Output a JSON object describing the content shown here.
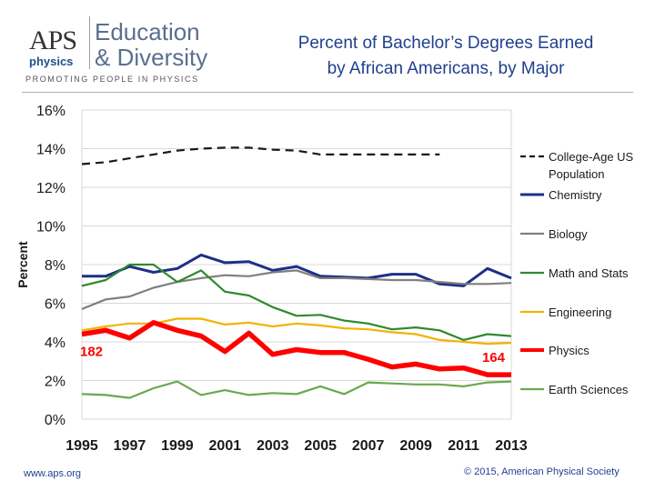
{
  "logo": {
    "aps": "APS",
    "physics": "physics",
    "line1": "Education",
    "line2": "& Diversity",
    "tagline": "PROMOTING PEOPLE IN PHYSICS"
  },
  "title_line1": "Percent of Bachelor’s Degrees Earned",
  "title_line2": "by African Americans, by Major",
  "footer_left": "www.aps.org",
  "footer_right": "© 2015, American Physical Society",
  "chart_data": {
    "type": "line",
    "ylabel": "Percent",
    "xlabel": "",
    "xlim": [
      1995,
      2013
    ],
    "ylim": [
      0,
      16
    ],
    "x_ticks": [
      1995,
      1997,
      1999,
      2001,
      2003,
      2005,
      2007,
      2009,
      2011,
      2013
    ],
    "y_ticks": [
      "0%",
      "2%",
      "4%",
      "6%",
      "8%",
      "10%",
      "12%",
      "14%",
      "16%"
    ],
    "grid": true,
    "legend_position": "right",
    "series": [
      {
        "name": "College-Age US Population",
        "color": "#1a1a1a",
        "dash": true,
        "width": 2.2,
        "x": [
          1995,
          1996,
          1997,
          1998,
          1999,
          2000,
          2001,
          2002,
          2003,
          2004,
          2005,
          2006,
          2007,
          2008,
          2009,
          2010
        ],
        "y": [
          13.2,
          13.3,
          13.5,
          13.7,
          13.9,
          14.0,
          14.05,
          14.05,
          13.95,
          13.9,
          13.7,
          13.7,
          13.7,
          13.7,
          13.7,
          13.7
        ]
      },
      {
        "name": "Chemistry",
        "color": "#1f2f86",
        "dash": false,
        "width": 3,
        "x": [
          1995,
          1996,
          1997,
          1998,
          1999,
          2000,
          2001,
          2002,
          2003,
          2004,
          2005,
          2006,
          2007,
          2008,
          2009,
          2010,
          2011,
          2012,
          2013
        ],
        "y": [
          7.4,
          7.4,
          7.9,
          7.6,
          7.8,
          8.5,
          8.1,
          8.15,
          7.7,
          7.9,
          7.4,
          7.35,
          7.3,
          7.5,
          7.5,
          7.0,
          6.9,
          7.8,
          7.3
        ]
      },
      {
        "name": "Biology",
        "color": "#7f7f7f",
        "dash": false,
        "width": 2.2,
        "x": [
          1995,
          1996,
          1997,
          1998,
          1999,
          2000,
          2001,
          2002,
          2003,
          2004,
          2005,
          2006,
          2007,
          2008,
          2009,
          2010,
          2011,
          2012,
          2013
        ],
        "y": [
          5.7,
          6.2,
          6.35,
          6.8,
          7.1,
          7.3,
          7.45,
          7.4,
          7.6,
          7.7,
          7.3,
          7.3,
          7.25,
          7.2,
          7.2,
          7.1,
          7.0,
          7.0,
          7.05
        ]
      },
      {
        "name": "Math and Stats",
        "color": "#2e8a2e",
        "dash": false,
        "width": 2.2,
        "x": [
          1995,
          1996,
          1997,
          1998,
          1999,
          2000,
          2001,
          2002,
          2003,
          2004,
          2005,
          2006,
          2007,
          2008,
          2009,
          2010,
          2011,
          2012,
          2013
        ],
        "y": [
          6.9,
          7.2,
          8.0,
          8.0,
          7.1,
          7.7,
          6.6,
          6.4,
          5.8,
          5.35,
          5.4,
          5.1,
          4.95,
          4.65,
          4.75,
          4.6,
          4.1,
          4.4,
          4.3
        ]
      },
      {
        "name": "Engineering",
        "color": "#f0b400",
        "dash": false,
        "width": 2.2,
        "x": [
          1995,
          1996,
          1997,
          1998,
          1999,
          2000,
          2001,
          2002,
          2003,
          2004,
          2005,
          2006,
          2007,
          2008,
          2009,
          2010,
          2011,
          2012,
          2013
        ],
        "y": [
          4.6,
          4.8,
          4.95,
          4.95,
          5.2,
          5.2,
          4.9,
          5.0,
          4.8,
          4.95,
          4.85,
          4.7,
          4.65,
          4.5,
          4.4,
          4.1,
          4.0,
          3.9,
          3.95
        ]
      },
      {
        "name": "Physics",
        "color": "#ff0000",
        "dash": false,
        "width": 5.5,
        "x": [
          1995,
          1996,
          1997,
          1998,
          1999,
          2000,
          2001,
          2002,
          2003,
          2004,
          2005,
          2006,
          2007,
          2008,
          2009,
          2010,
          2011,
          2012,
          2013
        ],
        "y": [
          4.4,
          4.6,
          4.2,
          5.0,
          4.6,
          4.3,
          3.5,
          4.45,
          3.35,
          3.6,
          3.45,
          3.45,
          3.1,
          2.7,
          2.85,
          2.6,
          2.65,
          2.3,
          2.3
        ]
      },
      {
        "name": "Earth Sciences",
        "color": "#6aa84f",
        "dash": false,
        "width": 2.2,
        "x": [
          1995,
          1996,
          1997,
          1998,
          1999,
          2000,
          2001,
          2002,
          2003,
          2004,
          2005,
          2006,
          2007,
          2008,
          2009,
          2010,
          2011,
          2012,
          2013
        ],
        "y": [
          1.3,
          1.25,
          1.1,
          1.6,
          1.95,
          1.25,
          1.5,
          1.25,
          1.35,
          1.3,
          1.7,
          1.3,
          1.9,
          1.85,
          1.8,
          1.8,
          1.7,
          1.9,
          1.95
        ]
      }
    ],
    "annotations": [
      {
        "text": "182",
        "x": 1995,
        "y": 4.4,
        "color": "#ff0000"
      },
      {
        "text": "164",
        "x": 2013,
        "y": 2.3,
        "color": "#ff0000"
      }
    ]
  }
}
